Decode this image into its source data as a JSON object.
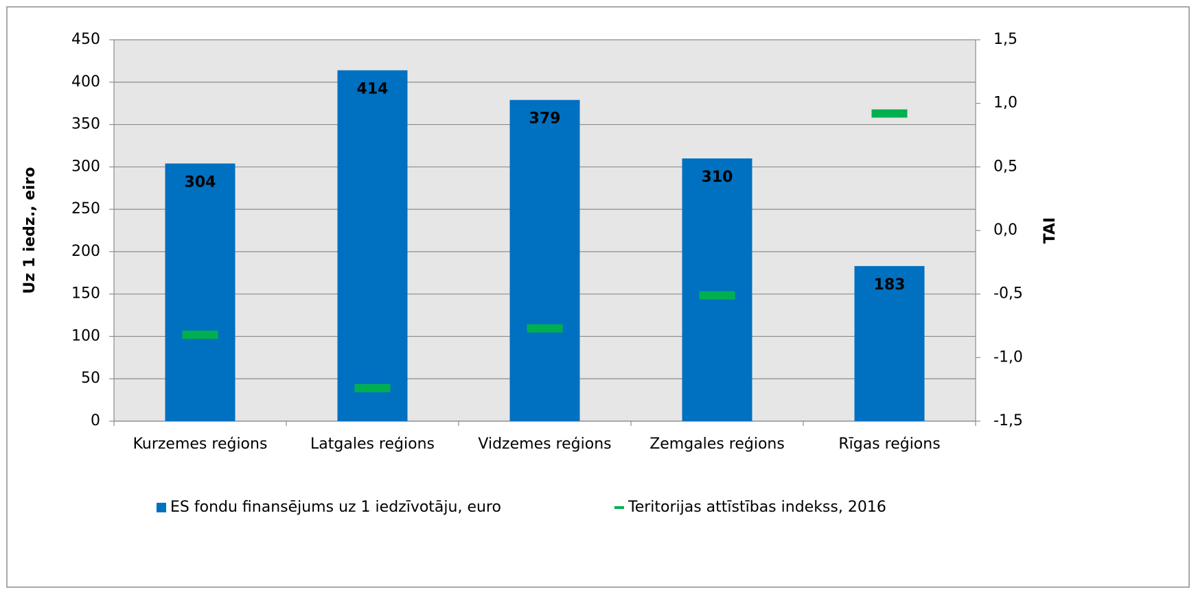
{
  "chart_data": {
    "type": "bar",
    "categories": [
      "Kurzemes reģions",
      "Latgales reģions",
      "Vidzemes reģions",
      "Zemgales reģions",
      "Rīgas reģions"
    ],
    "series": [
      {
        "name": "ES fondu finansējums uz 1 iedzīvotāju, euro",
        "color": "#0070c0",
        "values": [
          304,
          414,
          379,
          310,
          183
        ]
      },
      {
        "name": "Teritorijas attīstības indekss, 2016",
        "color": "#00b050",
        "axis": "y2",
        "values": [
          -0.82,
          -1.24,
          -0.77,
          -0.51,
          0.92
        ]
      }
    ],
    "ylabel": "Uz 1 iedz., eiro",
    "y2label": "TAI",
    "ylim": [
      0,
      450
    ],
    "yticks": [
      0,
      50,
      100,
      150,
      200,
      250,
      300,
      350,
      400,
      450
    ],
    "y2lim": [
      -1.5,
      1.5
    ],
    "y2ticks": [
      {
        "value": -1.5,
        "label": "-1,5"
      },
      {
        "value": -1.0,
        "label": "-1,0"
      },
      {
        "value": -0.5,
        "label": "-0,5"
      },
      {
        "value": 0,
        "label": "0,0"
      },
      {
        "value": 0.5,
        "label": "0,5"
      },
      {
        "value": 1.0,
        "label": "1,0"
      },
      {
        "value": 1.5,
        "label": "1,5"
      }
    ],
    "grid": true,
    "legend": "bottom"
  }
}
